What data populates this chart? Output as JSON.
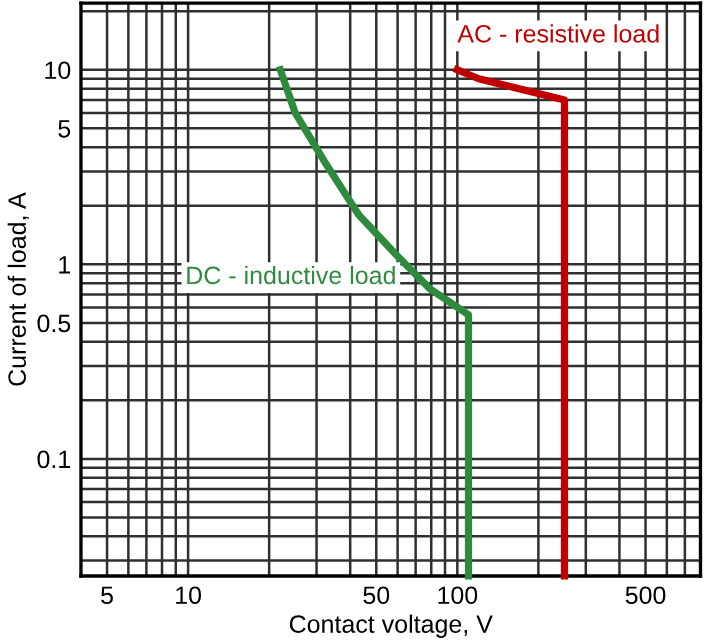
{
  "chart_data": {
    "type": "line",
    "xlabel": "Contact voltage, V",
    "ylabel": "Current of load, A",
    "log": "xy",
    "grid": true,
    "legend": false,
    "xlim": [
      4,
      800
    ],
    "ylim": [
      0.025,
      22
    ],
    "xticks": [
      5,
      10,
      50,
      100,
      500
    ],
    "yticks": [
      0.1,
      0.5,
      1,
      5,
      10
    ],
    "series": [
      {
        "name": "AC - resistive load",
        "color": "#c00000",
        "x": [
          100,
          120,
          250,
          250
        ],
        "values": [
          10,
          9,
          7,
          0.025
        ]
      },
      {
        "name": "DC - inductive load",
        "color": "#2e8b3e",
        "x": [
          22,
          25,
          32,
          43,
          60,
          79,
          110,
          110
        ],
        "values": [
          10,
          6,
          3.4,
          1.8,
          1.1,
          0.75,
          0.55,
          0.025
        ]
      }
    ]
  }
}
